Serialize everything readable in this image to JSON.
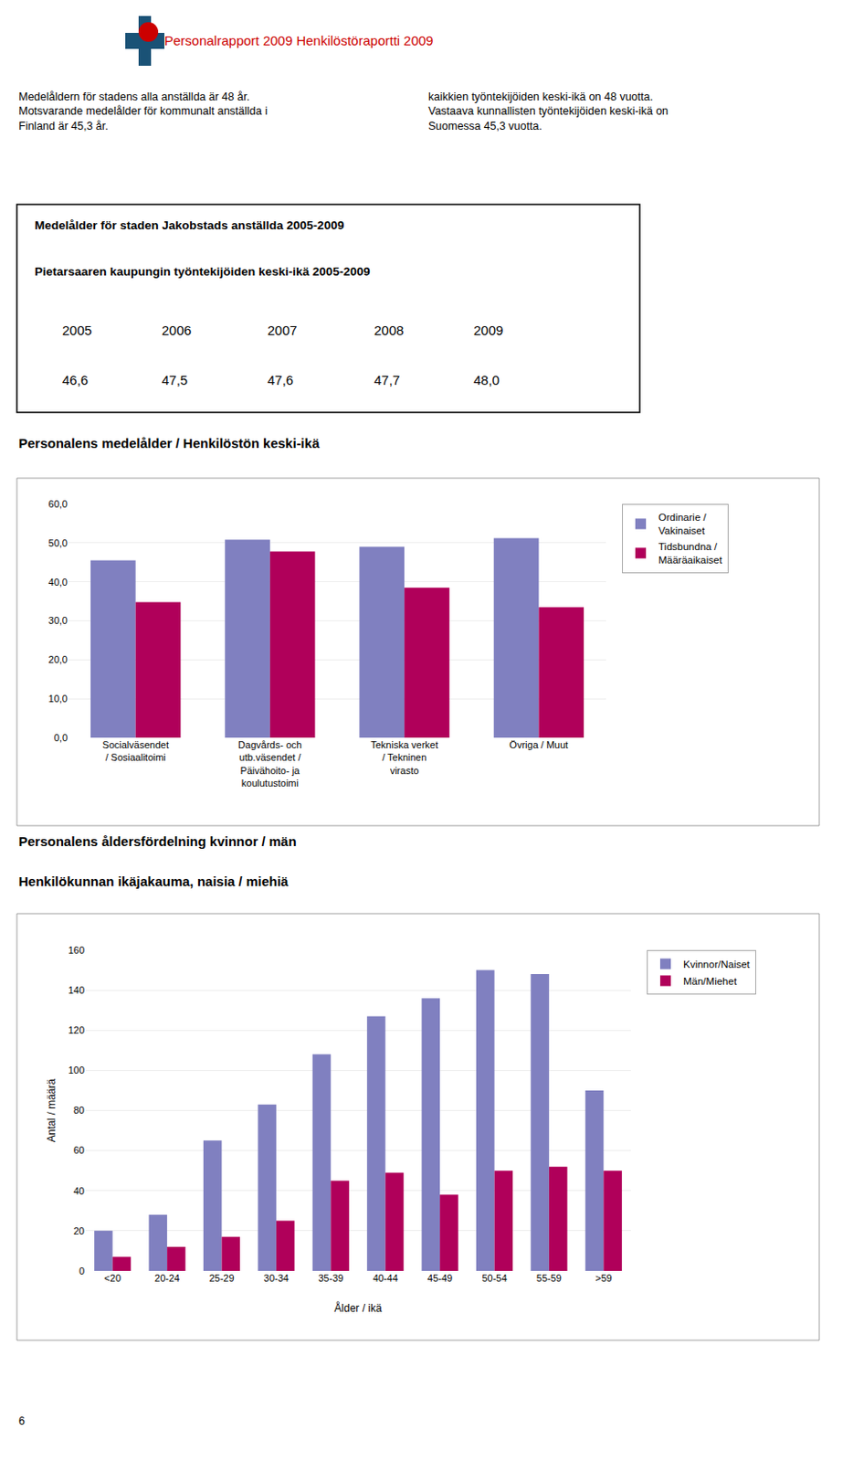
{
  "title": "Personalrapport 2009 Henkilöstöraportti 2009",
  "annotations": [
    "Medelåldern för stadens alla anställda är 48 år.\nMotsvarande medelålder för kommunalt anställda i\nFinland är 45,3 år.",
    "kaikkien työntekijöiden keski-ikä on 48 vuotta.\nVastaava kunnallisten työntekijöiden keski-ikä on\nSuomessa 45,3 vuotta.",
    "6"
  ],
  "chart_data": [
    {
      "type": "table",
      "title": "Medelålder för staden Jakobstads anställda 2005-2009",
      "subtitle": "Pietarsaaren kaupungin työntekijöiden keski-ikä 2005-2009",
      "categories": [
        "2005",
        "2006",
        "2007",
        "2008",
        "2009"
      ],
      "values": [
        46.6,
        47.5,
        47.6,
        47.7,
        48.0
      ],
      "value_labels": [
        "46,6",
        "47,5",
        "47,6",
        "47,7",
        "48,0"
      ]
    },
    {
      "type": "bar",
      "title": "Personalens medelålder / Henkilöstön keski-ikä",
      "categories": [
        "Socialväsendet\n/ Sosiaalitoimi",
        "Dagvårds- och\nutb.väsendet /\nPäivähoito- ja\nkoulutustoimi",
        "Tekniska verket\n/ Tekninen\nvirasto",
        "Övriga / Muut"
      ],
      "series": [
        {
          "name": "Ordinarie /\nVakinaiset",
          "color": "#8080c0",
          "values": [
            45.5,
            50.8,
            49.0,
            51.2
          ]
        },
        {
          "name": "Tidsbundna /\nMääräaikaiset",
          "color": "#b0005a",
          "values": [
            34.8,
            47.8,
            38.5,
            33.5
          ]
        }
      ],
      "ylim": [
        0,
        60
      ],
      "yticks": [
        {
          "value": 0,
          "label": "0,0"
        },
        {
          "value": 10,
          "label": "10,0"
        },
        {
          "value": 20,
          "label": "20,0"
        },
        {
          "value": 30,
          "label": "30,0"
        },
        {
          "value": 40,
          "label": "40,0"
        },
        {
          "value": 50,
          "label": "50,0"
        },
        {
          "value": 60,
          "label": "60,0"
        }
      ],
      "grid": true,
      "legend": "right"
    },
    {
      "type": "bar",
      "title": "Personalens åldersfördelning kvinnor / män",
      "subtitle": "Henkilökunnan ikäjakauma, naisia / miehiä",
      "xlabel": "Ålder / ikä",
      "ylabel": "Antal / määrä",
      "categories": [
        "<20",
        "20-24",
        "25-29",
        "30-34",
        "35-39",
        "40-44",
        "45-49",
        "50-54",
        "55-59",
        ">59"
      ],
      "series": [
        {
          "name": "Kvinnor/Naiset",
          "color": "#8080c0",
          "values": [
            20,
            28,
            65,
            83,
            108,
            127,
            136,
            150,
            148,
            90
          ]
        },
        {
          "name": "Män/Miehet",
          "color": "#b0005a",
          "values": [
            7,
            12,
            17,
            25,
            45,
            49,
            38,
            50,
            52,
            50
          ]
        }
      ],
      "ylim": [
        0,
        160
      ],
      "yticks": [
        0,
        20,
        40,
        60,
        80,
        100,
        120,
        140,
        160
      ],
      "grid": true,
      "legend": "right"
    }
  ]
}
